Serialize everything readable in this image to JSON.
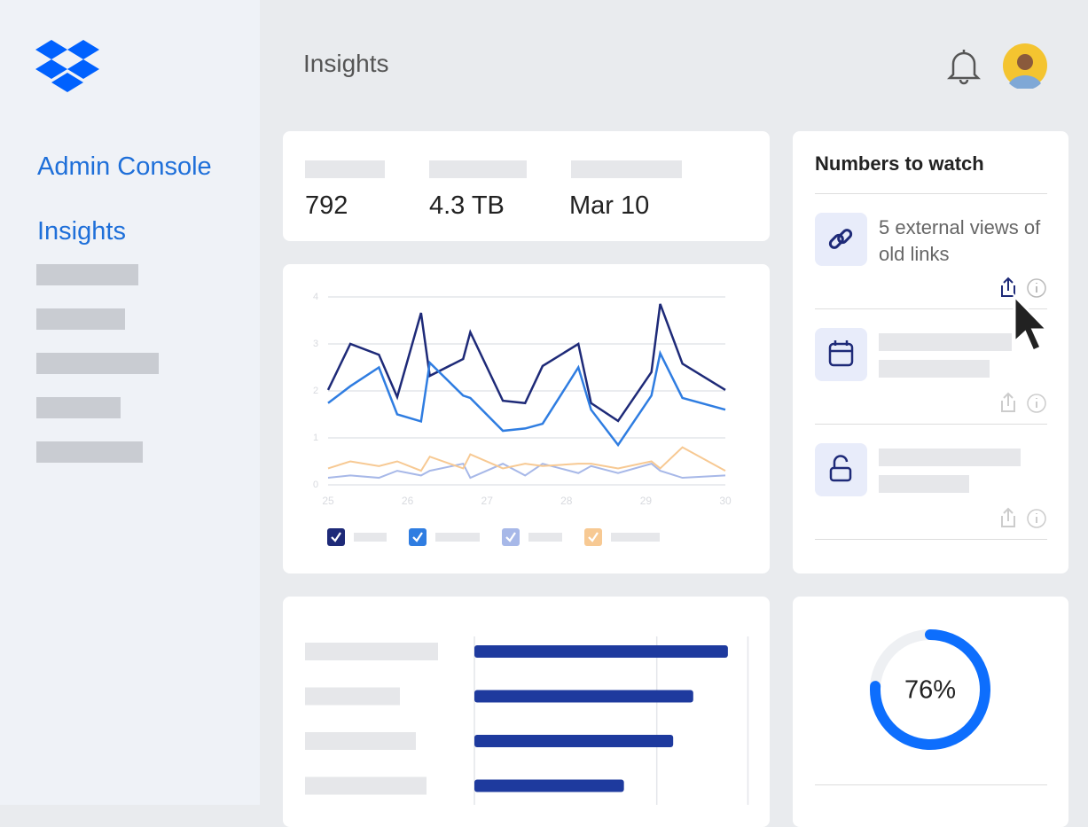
{
  "sidebar": {
    "nav": [
      "Admin Console",
      "Insights"
    ]
  },
  "header": {
    "title": "Insights"
  },
  "stats": [
    "792",
    "4.3 TB",
    "Mar 10"
  ],
  "numbers_to_watch": {
    "title": "Numbers to watch",
    "items": [
      {
        "text": "5 external views of old links"
      }
    ]
  },
  "chart_data": [
    {
      "type": "line",
      "x": [
        25,
        25.28,
        25.64,
        25.87,
        26.17,
        26.28,
        26.7,
        26.79,
        27.2,
        27.48,
        27.7,
        28.15,
        28.31,
        28.65,
        29.07,
        29.18,
        29.46,
        30
      ],
      "series": [
        {
          "color": "#1e2a78",
          "values": [
            2.02,
            3.0,
            2.77,
            1.87,
            3.66,
            2.32,
            2.68,
            3.25,
            1.79,
            1.74,
            2.53,
            3.0,
            1.74,
            1.36,
            2.4,
            3.85,
            2.58,
            2.02
          ]
        },
        {
          "color": "#2f7de1",
          "values": [
            1.74,
            2.1,
            2.5,
            1.5,
            1.35,
            2.6,
            1.9,
            1.85,
            1.15,
            1.2,
            1.3,
            2.5,
            1.6,
            0.85,
            1.9,
            2.8,
            1.85,
            1.6
          ]
        },
        {
          "color": "#a7b8e8",
          "values": [
            0.15,
            0.2,
            0.15,
            0.3,
            0.2,
            0.3,
            0.45,
            0.15,
            0.45,
            0.2,
            0.45,
            0.25,
            0.4,
            0.25,
            0.45,
            0.3,
            0.15,
            0.2
          ]
        },
        {
          "color": "#f7c993",
          "values": [
            0.35,
            0.5,
            0.4,
            0.5,
            0.3,
            0.6,
            0.35,
            0.65,
            0.35,
            0.45,
            0.4,
            0.45,
            0.45,
            0.35,
            0.5,
            0.35,
            0.8,
            0.3
          ]
        }
      ],
      "xlim": [
        25,
        30
      ],
      "xticks": [
        25,
        26,
        27,
        28,
        29,
        30
      ],
      "ylim": [
        0,
        4
      ],
      "yticks": [
        0,
        1,
        2,
        3,
        4
      ],
      "grid": true
    },
    {
      "type": "hbar",
      "color": "#1e3a9e",
      "values": [
        139,
        120,
        109,
        82
      ],
      "xlim": [
        0,
        150
      ],
      "xticks": [
        0,
        100,
        150
      ],
      "grid": true
    },
    {
      "type": "pie",
      "color": "#0d6efd",
      "values": [
        76
      ],
      "value_labels": [
        "76%"
      ]
    }
  ]
}
